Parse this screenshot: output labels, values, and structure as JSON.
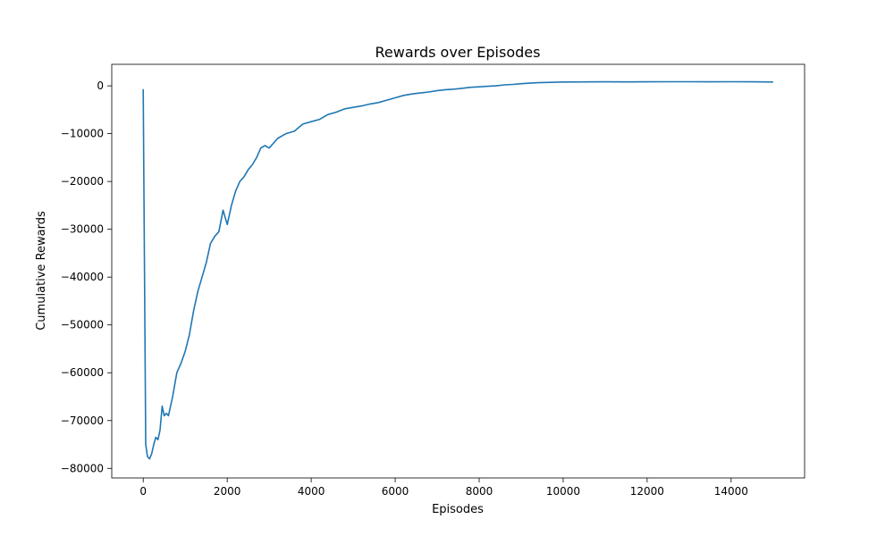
{
  "chart_data": {
    "type": "line",
    "title": "Rewards over Episodes",
    "xlabel": "Episodes",
    "ylabel": "Cumulative Rewards",
    "xlim": [
      -750,
      15750
    ],
    "ylim": [
      -82000,
      4500
    ],
    "x_ticks": [
      0,
      2000,
      4000,
      6000,
      8000,
      10000,
      12000,
      14000
    ],
    "x_tick_labels": [
      "0",
      "2000",
      "4000",
      "6000",
      "8000",
      "10000",
      "12000",
      "14000"
    ],
    "y_ticks": [
      0,
      -10000,
      -20000,
      -30000,
      -40000,
      -50000,
      -60000,
      -70000,
      -80000
    ],
    "y_tick_labels": [
      "0",
      "−10000",
      "−20000",
      "−30000",
      "−40000",
      "−50000",
      "−60000",
      "−70000",
      "−80000"
    ],
    "grid": false,
    "series": [
      {
        "color": "#1f77b4",
        "x": [
          0,
          60,
          100,
          150,
          200,
          250,
          300,
          350,
          400,
          450,
          500,
          550,
          600,
          700,
          800,
          900,
          1000,
          1100,
          1200,
          1300,
          1400,
          1500,
          1600,
          1700,
          1800,
          1900,
          2000,
          2100,
          2200,
          2300,
          2400,
          2500,
          2600,
          2700,
          2800,
          2900,
          3000,
          3200,
          3400,
          3600,
          3800,
          4000,
          4200,
          4400,
          4600,
          4800,
          5000,
          5200,
          5400,
          5600,
          5800,
          6000,
          6200,
          6400,
          6600,
          6800,
          7000,
          7200,
          7400,
          7600,
          7800,
          8000,
          8200,
          8400,
          8600,
          8800,
          9000,
          9200,
          9400,
          9600,
          9800,
          10000,
          10500,
          11000,
          11500,
          12000,
          12500,
          13000,
          13500,
          14000,
          14500,
          15000
        ],
        "y": [
          -700,
          -75000,
          -77500,
          -78000,
          -77000,
          -75000,
          -73500,
          -74000,
          -72000,
          -67000,
          -69000,
          -68500,
          -69000,
          -65000,
          -60000,
          -58000,
          -55500,
          -52000,
          -47000,
          -43000,
          -40000,
          -37000,
          -33000,
          -31500,
          -30500,
          -26000,
          -29000,
          -25000,
          -22000,
          -20000,
          -19000,
          -17500,
          -16500,
          -15000,
          -13000,
          -12500,
          -13000,
          -11000,
          -10000,
          -9500,
          -8000,
          -7500,
          -7000,
          -6000,
          -5500,
          -4800,
          -4500,
          -4200,
          -3800,
          -3500,
          -3000,
          -2500,
          -2000,
          -1700,
          -1500,
          -1300,
          -1000,
          -800,
          -700,
          -500,
          -300,
          -200,
          -100,
          0,
          200,
          300,
          450,
          550,
          650,
          700,
          750,
          800,
          820,
          830,
          820,
          840,
          850,
          860,
          840,
          850,
          830,
          800
        ]
      }
    ]
  }
}
